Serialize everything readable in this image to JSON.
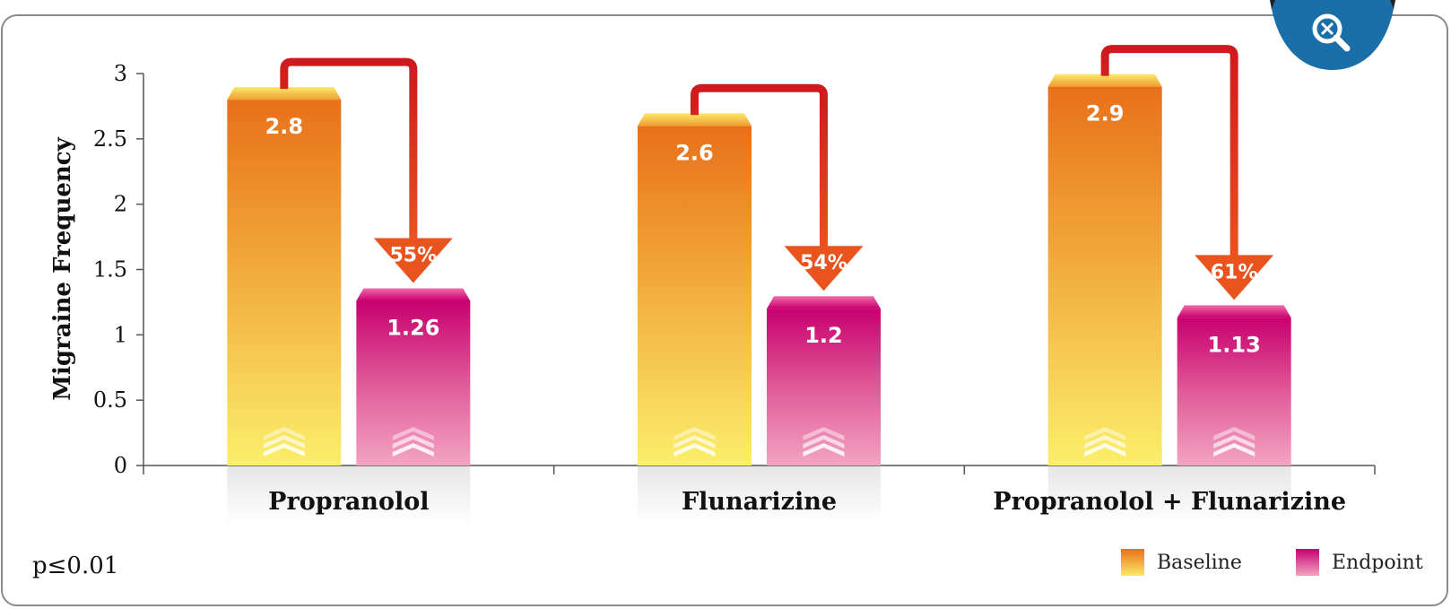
{
  "chart_data": {
    "type": "bar",
    "ylabel": "Migraine Frequency",
    "ylim": [
      0,
      3
    ],
    "yticks": [
      "0",
      "0.5",
      "1",
      "1.5",
      "2",
      "2.5",
      "3"
    ],
    "categories": [
      "Propranolol",
      "Flunarizine",
      "Propranolol + Flunarizine"
    ],
    "series": [
      {
        "name": "Baseline",
        "values": [
          2.8,
          2.6,
          2.9
        ],
        "labels": [
          "2.8",
          "2.6",
          "2.9"
        ]
      },
      {
        "name": "Endpoint",
        "values": [
          1.26,
          1.2,
          1.13
        ],
        "labels": [
          "1.26",
          "1.2",
          "1.13"
        ]
      }
    ],
    "reductions": [
      "55%",
      "54%",
      "61%"
    ],
    "legend_position": "bottom-right",
    "grid": false
  },
  "colors": {
    "baseline_top": "#e8701a",
    "baseline_bottom": "#fbe86a",
    "endpoint_top": "#c8006f",
    "endpoint_bottom": "#f3a4c2",
    "arrow_line": "#d0191d",
    "arrow_head": "#e8531e",
    "zoom_tab": "#1a6fa8"
  },
  "note": "p≤0.01",
  "zoom_icon": "zoom-out-magnifier-icon"
}
